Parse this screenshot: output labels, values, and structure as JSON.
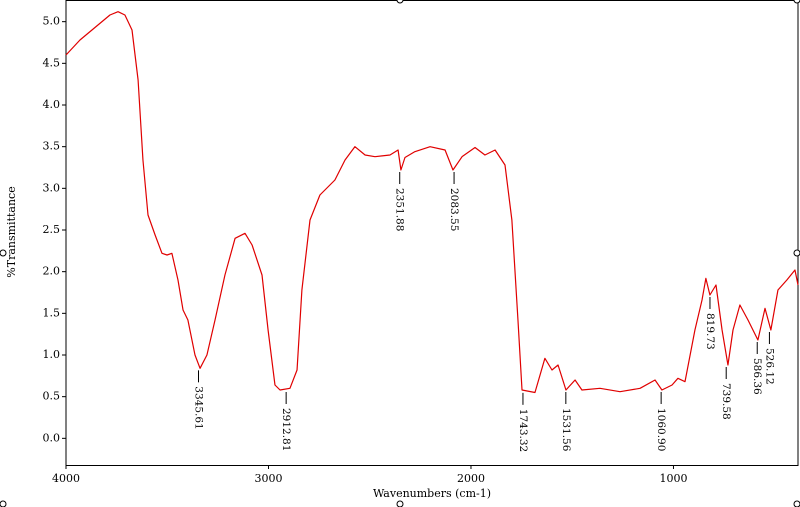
{
  "chart_data": {
    "type": "line",
    "xlabel": "Wavenumbers (cm-1)",
    "ylabel": "%Transmittance",
    "color": "#e00000",
    "xlim": [
      4000,
      385
    ],
    "xticks": [
      4000,
      3000,
      2000,
      1000
    ],
    "ylim": [
      -0.32,
      5.26
    ],
    "yticks": [
      {
        "value": 0,
        "label": "0.0"
      },
      0.5,
      {
        "value": 1,
        "label": "1.0"
      },
      1.5,
      {
        "value": 2,
        "label": "2.0"
      },
      2.5,
      {
        "value": 3,
        "label": "3.0"
      },
      3.5,
      {
        "value": 4,
        "label": "4.0"
      },
      4.5,
      {
        "value": 5,
        "label": "5.0"
      }
    ],
    "x": [
      4000,
      3931,
      3857,
      3783,
      3743,
      3709,
      3674,
      3644,
      3620,
      3595,
      3560,
      3526,
      3501,
      3477,
      3447,
      3422,
      3398,
      3363,
      3338,
      3304,
      3264,
      3215,
      3165,
      3116,
      3081,
      3032,
      3002,
      2968,
      2943,
      2894,
      2859,
      2835,
      2795,
      2746,
      2672,
      2622,
      2573,
      2523,
      2474,
      2400,
      2360,
      2346,
      2326,
      2277,
      2202,
      2128,
      2089,
      2044,
      1980,
      1931,
      1881,
      1832,
      1798,
      1768,
      1748,
      1684,
      1635,
      1600,
      1570,
      1531,
      1486,
      1452,
      1363,
      1264,
      1165,
      1091,
      1057,
      1007,
      978,
      943,
      894,
      859,
      840,
      820,
      790,
      760,
      731,
      706,
      672,
      632,
      583,
      548,
      519,
      484,
      440,
      400,
      385
    ],
    "values": [
      4.6,
      4.78,
      4.93,
      5.08,
      5.12,
      5.08,
      4.9,
      4.3,
      3.34,
      2.68,
      2.44,
      2.22,
      2.2,
      2.22,
      1.9,
      1.54,
      1.42,
      1.0,
      0.84,
      1.0,
      1.42,
      1.96,
      2.4,
      2.46,
      2.32,
      1.96,
      1.3,
      0.64,
      0.58,
      0.6,
      0.82,
      1.78,
      2.62,
      2.92,
      3.1,
      3.34,
      3.5,
      3.4,
      3.38,
      3.4,
      3.46,
      3.22,
      3.37,
      3.44,
      3.5,
      3.46,
      3.22,
      3.38,
      3.49,
      3.4,
      3.46,
      3.28,
      2.62,
      1.42,
      0.58,
      0.55,
      0.96,
      0.82,
      0.88,
      0.58,
      0.7,
      0.58,
      0.6,
      0.56,
      0.6,
      0.7,
      0.58,
      0.64,
      0.72,
      0.68,
      1.3,
      1.66,
      1.92,
      1.72,
      1.84,
      1.3,
      0.88,
      1.3,
      1.6,
      1.42,
      1.18,
      1.56,
      1.3,
      1.78,
      1.9,
      2.02,
      1.84
    ],
    "annotations": [
      {
        "x": 3345.61,
        "y": 0.84,
        "label": "3345.61"
      },
      {
        "x": 2912.81,
        "y": 0.58,
        "label": "2912.81"
      },
      {
        "x": 2351.88,
        "y": 3.22,
        "label": "2351.88"
      },
      {
        "x": 2083.55,
        "y": 3.22,
        "label": "2083.55"
      },
      {
        "x": 1743.32,
        "y": 0.57,
        "label": "1743.32"
      },
      {
        "x": 1531.56,
        "y": 0.58,
        "label": "1531.56"
      },
      {
        "x": 1060.9,
        "y": 0.58,
        "label": "1060.90"
      },
      {
        "x": 819.73,
        "y": 1.72,
        "label": "819.73"
      },
      {
        "x": 739.58,
        "y": 0.88,
        "label": "739.58"
      },
      {
        "x": 586.36,
        "y": 1.18,
        "label": "586.36"
      },
      {
        "x": 526.12,
        "y": 1.3,
        "label": "526.12"
      }
    ]
  }
}
